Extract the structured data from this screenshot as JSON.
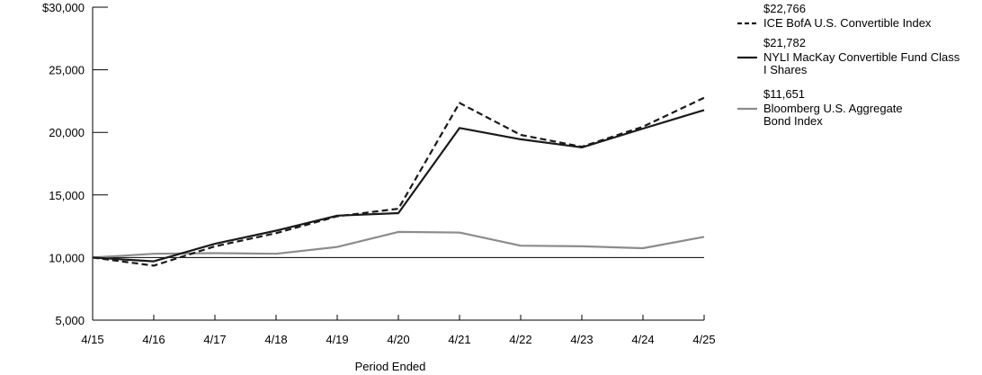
{
  "chart_data": {
    "type": "line",
    "xlabel": "Period Ended",
    "ylabel": "",
    "categories": [
      "4/15",
      "4/16",
      "4/17",
      "4/18",
      "4/19",
      "4/20",
      "4/21",
      "4/22",
      "4/23",
      "4/24",
      "4/25"
    ],
    "ylim": [
      5000,
      30000
    ],
    "yticks": [
      5000,
      10000,
      15000,
      20000,
      25000,
      30000
    ],
    "ytick_labels": [
      "5,000",
      "10,000",
      "15,000",
      "20,000",
      "25,000",
      "$30,000"
    ],
    "reference_line": 10000,
    "grid": false,
    "legend_position": "right",
    "series": [
      {
        "name": "ICE BofA U.S. Convertible Index",
        "ending_value_label": "$22,766",
        "color": "#1a1a1a",
        "dash": "dashed",
        "values": [
          10000,
          9350,
          10900,
          11950,
          13300,
          13900,
          22350,
          19800,
          18850,
          20450,
          22766
        ]
      },
      {
        "name": "NYLI MacKay Convertible Fund Class I Shares",
        "name_lines": [
          "NYLI MacKay Convertible Fund Class",
          "I Shares"
        ],
        "ending_value_label": "$21,782",
        "color": "#1a1a1a",
        "dash": "solid",
        "values": [
          10000,
          9700,
          11100,
          12150,
          13350,
          13550,
          20350,
          19450,
          18800,
          20300,
          21782
        ]
      },
      {
        "name": "Bloomberg U.S. Aggregate Bond Index",
        "name_lines": [
          "Bloomberg U.S. Aggregate",
          "Bond Index"
        ],
        "ending_value_label": "$11,651",
        "color": "#8c8c8c",
        "dash": "solid",
        "values": [
          10000,
          10300,
          10350,
          10300,
          10850,
          12050,
          12000,
          10950,
          10900,
          10750,
          11651
        ]
      }
    ]
  }
}
